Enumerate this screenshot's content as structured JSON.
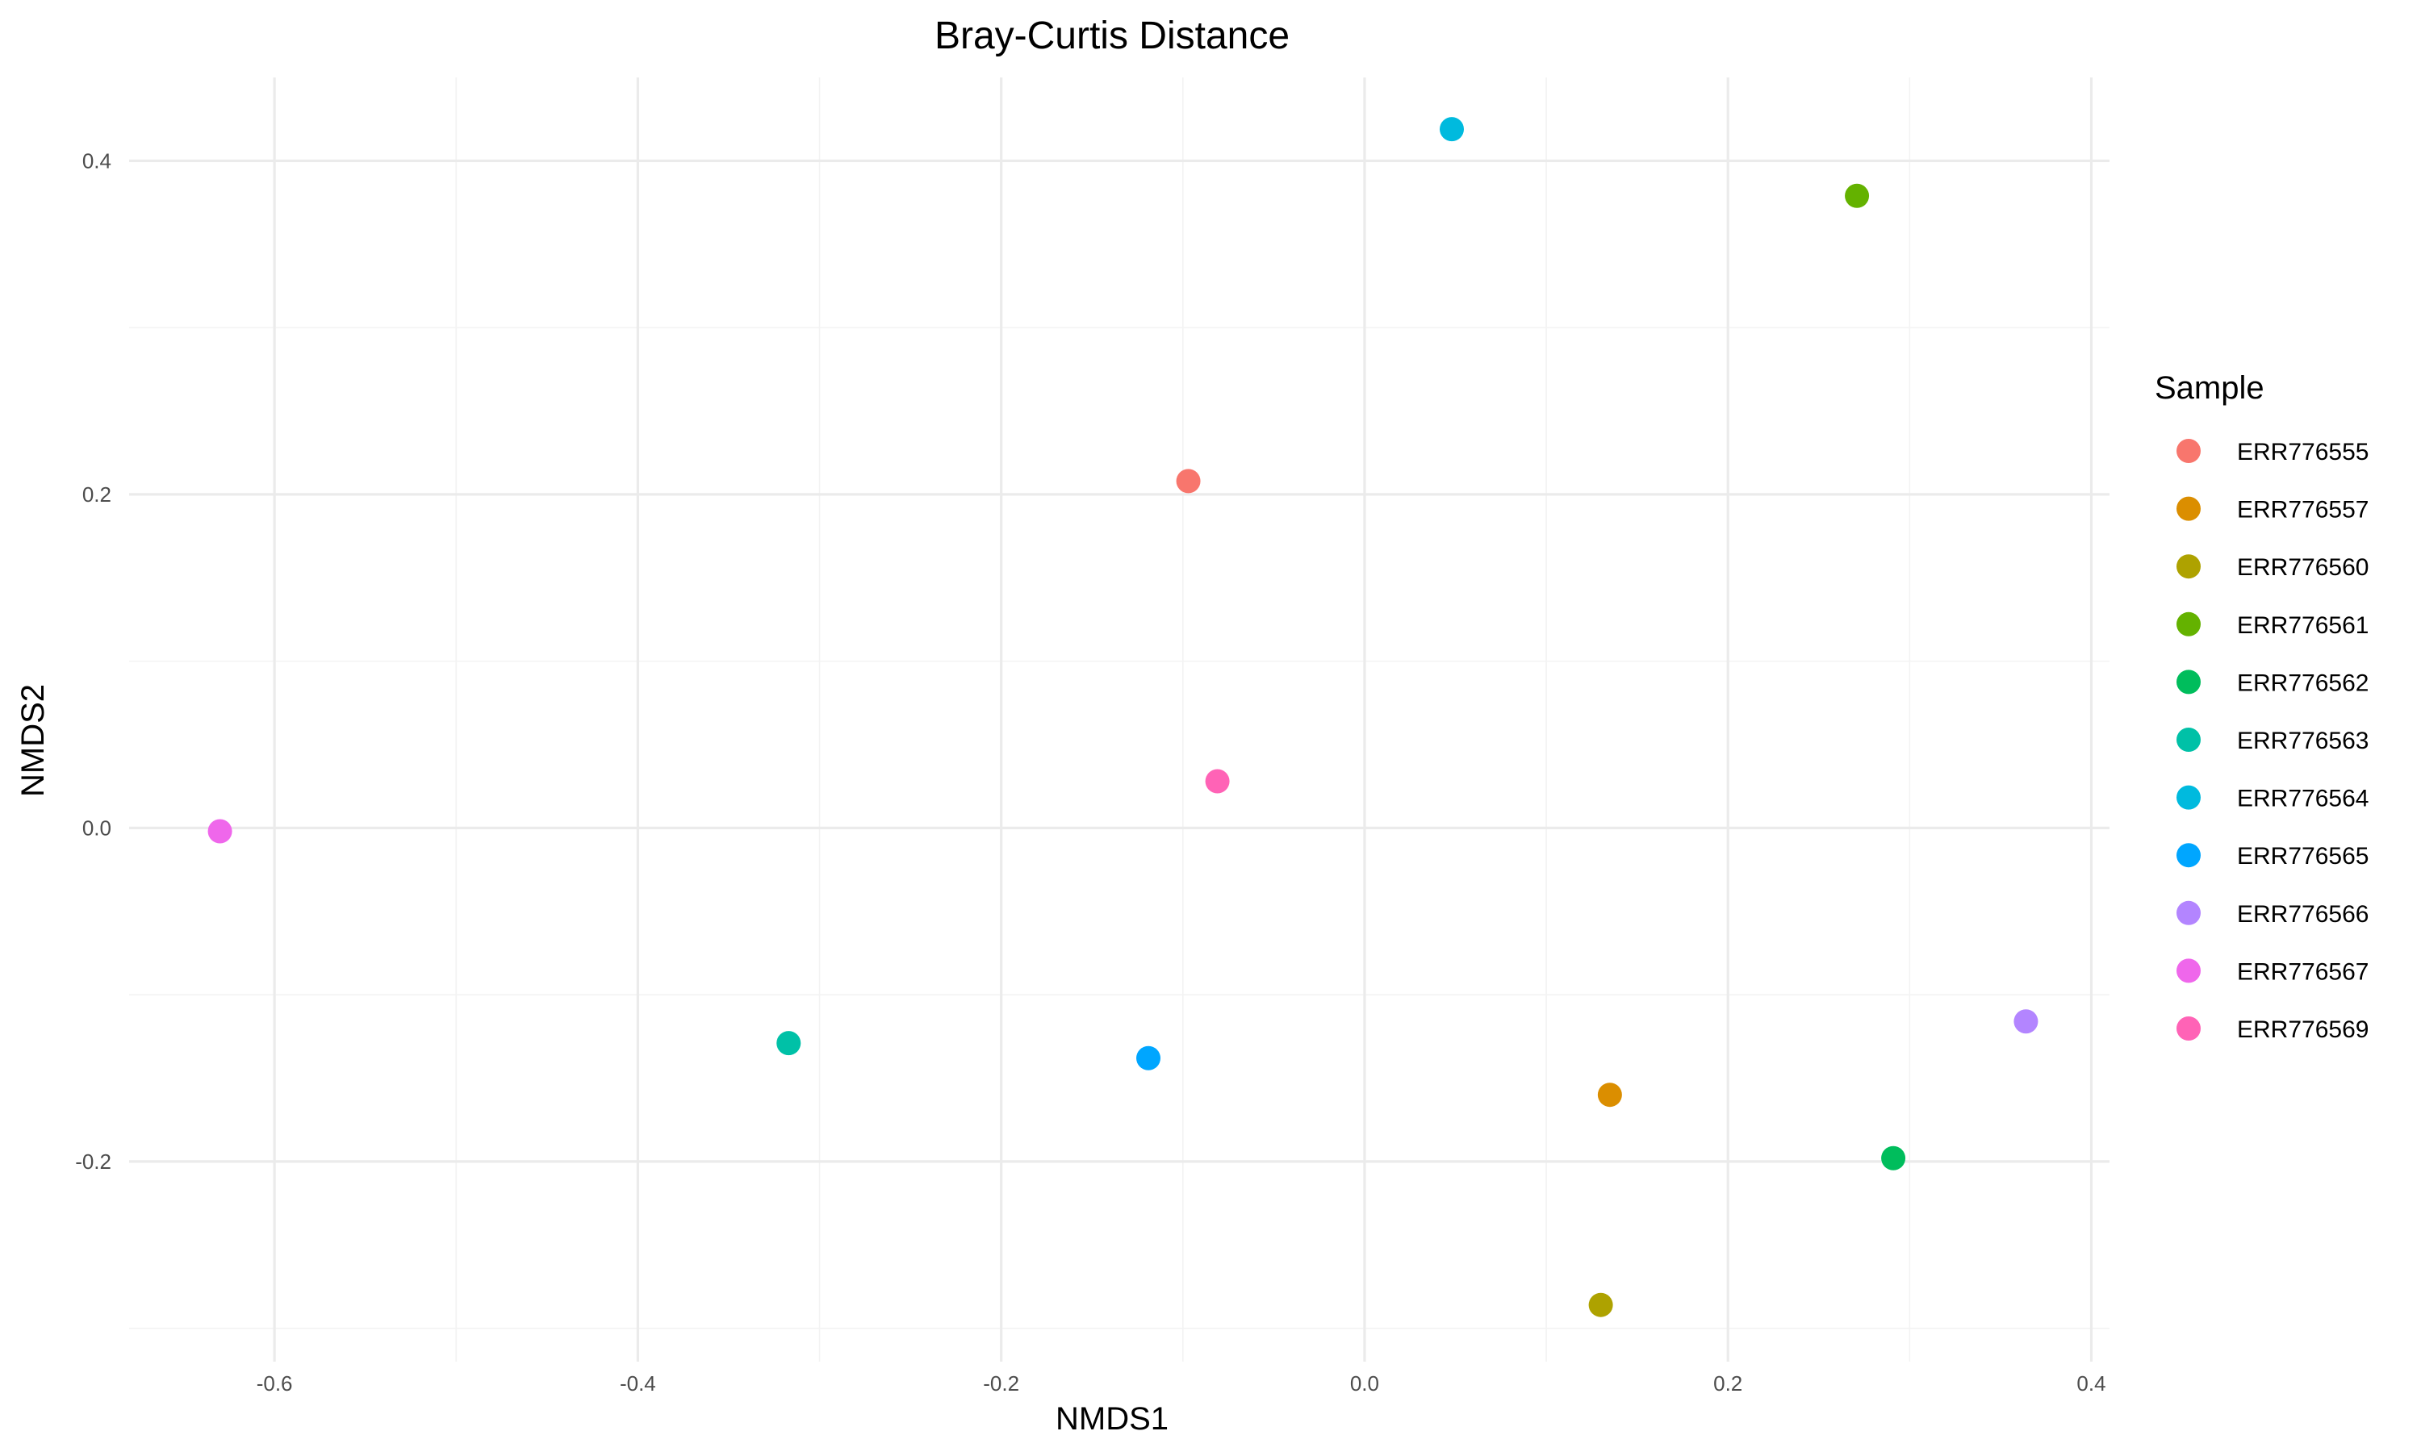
{
  "chart_data": {
    "type": "scatter",
    "title": "Bray-Curtis Distance",
    "xlabel": "NMDS1",
    "ylabel": "NMDS2",
    "xlim": [
      -0.68,
      0.41
    ],
    "ylim": [
      -0.32,
      0.45
    ],
    "x_ticks": [
      -0.6,
      -0.4,
      -0.2,
      0.0,
      0.2,
      0.4
    ],
    "x_tick_labels": [
      "-0.6",
      "-0.4",
      "-0.2",
      "0.0",
      "0.2",
      "0.4"
    ],
    "y_ticks": [
      -0.2,
      0.0,
      0.2,
      0.4
    ],
    "y_tick_labels": [
      "-0.2",
      "0.0",
      "0.2",
      "0.4"
    ],
    "grid": true,
    "legend": {
      "title": "Sample",
      "placement": "right"
    },
    "series": [
      {
        "name": "ERR776555",
        "color": "#F8766D",
        "x": -0.097,
        "y": 0.208
      },
      {
        "name": "ERR776557",
        "color": "#DB8E00",
        "x": 0.135,
        "y": -0.16
      },
      {
        "name": "ERR776560",
        "color": "#AEA200",
        "x": 0.13,
        "y": -0.286
      },
      {
        "name": "ERR776561",
        "color": "#64B200",
        "x": 0.271,
        "y": 0.379
      },
      {
        "name": "ERR776562",
        "color": "#00BD5C",
        "x": 0.291,
        "y": -0.198
      },
      {
        "name": "ERR776563",
        "color": "#00C1A7",
        "x": -0.317,
        "y": -0.129
      },
      {
        "name": "ERR776564",
        "color": "#00BADE",
        "x": 0.048,
        "y": 0.419
      },
      {
        "name": "ERR776565",
        "color": "#00A6FF",
        "x": -0.119,
        "y": -0.138
      },
      {
        "name": "ERR776566",
        "color": "#B385FF",
        "x": 0.364,
        "y": -0.116
      },
      {
        "name": "ERR776567",
        "color": "#EF67EB",
        "x": -0.63,
        "y": -0.002
      },
      {
        "name": "ERR776569",
        "color": "#FF63B6",
        "x": -0.081,
        "y": 0.028
      }
    ]
  }
}
